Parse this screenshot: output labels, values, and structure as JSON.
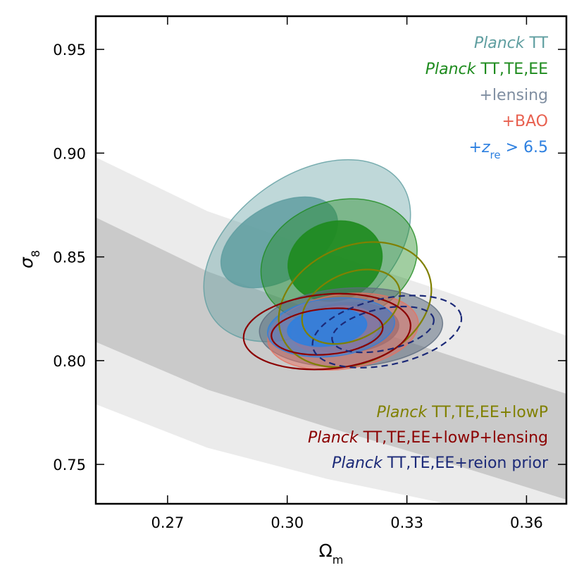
{
  "chart_data": {
    "type": "contour",
    "xlabel_main": "Ω",
    "xlabel_sub": "m",
    "ylabel_main": "σ",
    "ylabel_sub": "8",
    "xlim": [
      0.252,
      0.37
    ],
    "ylim": [
      0.731,
      0.966
    ],
    "xticks": [
      {
        "value": 0.27,
        "label": "0.27"
      },
      {
        "value": 0.3,
        "label": "0.30"
      },
      {
        "value": 0.33,
        "label": "0.33"
      },
      {
        "value": 0.36,
        "label": "0.36"
      }
    ],
    "yticks": [
      {
        "value": 0.75,
        "label": "0.75"
      },
      {
        "value": 0.8,
        "label": "0.80"
      },
      {
        "value": 0.85,
        "label": "0.85"
      },
      {
        "value": 0.9,
        "label": "0.90"
      },
      {
        "value": 0.95,
        "label": "0.95"
      }
    ],
    "bands": [
      {
        "name": "outer-band",
        "color": "#ebebeb",
        "upper": [
          [
            0.252,
            0.898
          ],
          [
            0.28,
            0.872
          ],
          [
            0.31,
            0.852
          ],
          [
            0.34,
            0.833
          ],
          [
            0.37,
            0.812
          ]
        ],
        "lower": [
          [
            0.252,
            0.779
          ],
          [
            0.28,
            0.758
          ],
          [
            0.31,
            0.743
          ],
          [
            0.34,
            0.731
          ],
          [
            0.37,
            0.731
          ]
        ]
      },
      {
        "name": "inner-band",
        "color": "#cacaca",
        "upper": [
          [
            0.252,
            0.869
          ],
          [
            0.28,
            0.843
          ],
          [
            0.31,
            0.822
          ],
          [
            0.34,
            0.803
          ],
          [
            0.37,
            0.784
          ]
        ],
        "lower": [
          [
            0.252,
            0.809
          ],
          [
            0.28,
            0.786
          ],
          [
            0.31,
            0.768
          ],
          [
            0.34,
            0.751
          ],
          [
            0.37,
            0.733
          ]
        ]
      }
    ],
    "series": [
      {
        "name": "Planck TT",
        "color": "#5f9ea0",
        "filled": true,
        "opacity": [
          0.4,
          0.85
        ],
        "cx": 0.305,
        "cy": 0.853,
        "sx": 0.029,
        "sy": 0.036,
        "rot": -36,
        "inner_cx": 0.298,
        "inner_cy": 0.857,
        "inner_sx": 0.016,
        "inner_sy": 0.018,
        "inner_rot": -30
      },
      {
        "name": "Planck TT,TE,EE",
        "color": "#1e8b1e",
        "filled": true,
        "opacity": [
          0.42,
          0.9
        ],
        "cx": 0.313,
        "cy": 0.848,
        "sx": 0.02,
        "sy": 0.029,
        "rot": -18,
        "inner_cx": 0.312,
        "inner_cy": 0.848,
        "inner_sx": 0.012,
        "inner_sy": 0.019,
        "inner_rot": -18
      },
      {
        "name": "+lensing",
        "color": "#5d6b7e",
        "filled": true,
        "opacity": [
          0.55,
          0.8
        ],
        "cx": 0.316,
        "cy": 0.816,
        "sx": 0.023,
        "sy": 0.019,
        "rot": -3,
        "inner_cx": 0.315,
        "inner_cy": 0.816,
        "inner_sx": 0.013,
        "inner_sy": 0.012,
        "inner_rot": -3
      },
      {
        "name": "+BAO",
        "color": "#e8705f",
        "filled": true,
        "opacity": [
          0.5,
          0.8
        ],
        "cx": 0.314,
        "cy": 0.814,
        "sx": 0.019,
        "sy": 0.018,
        "rot": -8,
        "inner_cx": 0.312,
        "inner_cy": 0.815,
        "inner_sx": 0.011,
        "inner_sy": 0.011,
        "inner_rot": -8
      },
      {
        "name": "+z_re > 6.5",
        "color": "#2c7fe0",
        "filled": true,
        "opacity": [
          0.5,
          0.85
        ],
        "cx": 0.311,
        "cy": 0.816,
        "sx": 0.016,
        "sy": 0.014,
        "rot": -6,
        "inner_cx": 0.31,
        "inner_cy": 0.816,
        "inner_sx": 0.01,
        "inner_sy": 0.009,
        "inner_rot": -6
      },
      {
        "name": "Planck TT,TE,EE+lowP",
        "color": "#808000",
        "filled": false,
        "cx": 0.317,
        "cy": 0.827,
        "sx": 0.02,
        "sy": 0.028,
        "rot": -25,
        "inner_cx": 0.316,
        "inner_cy": 0.826,
        "inner_sx": 0.013,
        "inner_sy": 0.016,
        "inner_rot": -25
      },
      {
        "name": "Planck TT,TE,EE+lowP+lensing",
        "color": "#8b0000",
        "filled": false,
        "cx": 0.31,
        "cy": 0.814,
        "sx": 0.021,
        "sy": 0.018,
        "rot": -5,
        "inner_cx": 0.31,
        "inner_cy": 0.814,
        "inner_sx": 0.014,
        "inner_sy": 0.011,
        "inner_rot": -5
      },
      {
        "name": "Planck TT,TE,EE+reion prior",
        "color": "#1c2a78",
        "filled": false,
        "dashed": true,
        "cx": 0.325,
        "cy": 0.814,
        "sx": 0.019,
        "sy": 0.016,
        "rot": -12,
        "inner_cx": 0.324,
        "inner_cy": 0.815,
        "inner_sx": 0.013,
        "inner_sy": 0.01,
        "inner_rot": -12
      }
    ],
    "legend_top": [
      {
        "italic": "Planck",
        "text": " TT",
        "color": "#5f9ea0"
      },
      {
        "italic": "Planck",
        "text": " TT,TE,EE",
        "color": "#1e8b1e"
      },
      {
        "italic": "",
        "text": "+lensing",
        "color": "#7f8ea1"
      },
      {
        "italic": "",
        "text": "+BAO",
        "color": "#e8604f"
      },
      {
        "italic": "",
        "text": "+",
        "math_italic": "z",
        "sub": "re",
        "tail": " > 6.5",
        "color": "#2c7fe0"
      }
    ],
    "legend_bottom": [
      {
        "italic": "Planck",
        "text": " TT,TE,EE+lowP",
        "color": "#808000"
      },
      {
        "italic": "Planck",
        "text": " TT,TE,EE+lowP+lensing",
        "color": "#8b0000"
      },
      {
        "italic": "Planck",
        "text": " TT,TE,EE+reion prior",
        "color": "#1c2a78"
      }
    ],
    "legend_position": "top-right and bottom-right"
  }
}
